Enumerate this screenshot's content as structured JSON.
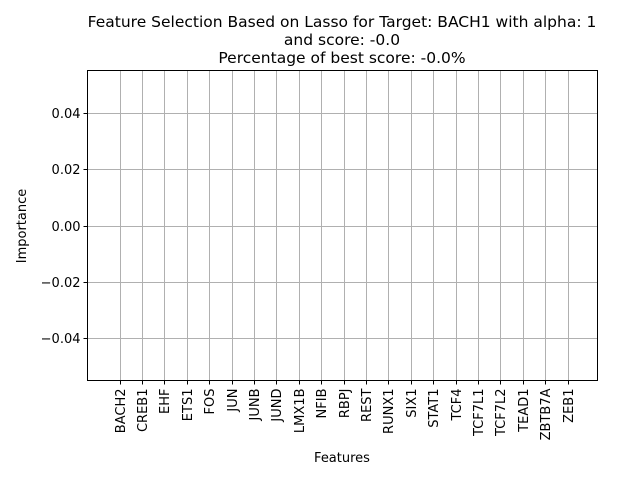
{
  "chart_data": {
    "type": "bar",
    "title_lines": [
      "Feature Selection Based on Lasso for Target: BACH1 with alpha: 1",
      "and score: -0.0",
      "Percentage of best score: -0.0%"
    ],
    "xlabel": "Features",
    "ylabel": "Importance",
    "categories": [
      "BACH2",
      "CREB1",
      "EHF",
      "ETS1",
      "FOS",
      "JUN",
      "JUNB",
      "JUND",
      "LMX1B",
      "NFIB",
      "RBPJ",
      "REST",
      "RUNX1",
      "SIX1",
      "STAT1",
      "TCF4",
      "TCF7L1",
      "TCF7L2",
      "TEAD1",
      "ZBTB7A",
      "ZEB1"
    ],
    "values": [
      0,
      0,
      0,
      0,
      0,
      0,
      0,
      0,
      0,
      0,
      0,
      0,
      0,
      0,
      0,
      0,
      0,
      0,
      0,
      0,
      0
    ],
    "ylim": [
      -0.055,
      0.055
    ],
    "yticks": [
      0.04,
      0.02,
      0.0,
      -0.02,
      -0.04
    ],
    "ytick_labels": [
      "0.04",
      "0.02",
      "0.00",
      "−0.02",
      "−0.04"
    ],
    "grid": true,
    "bar_color": "#1f77b4",
    "grid_color": "#b0b0b0"
  }
}
